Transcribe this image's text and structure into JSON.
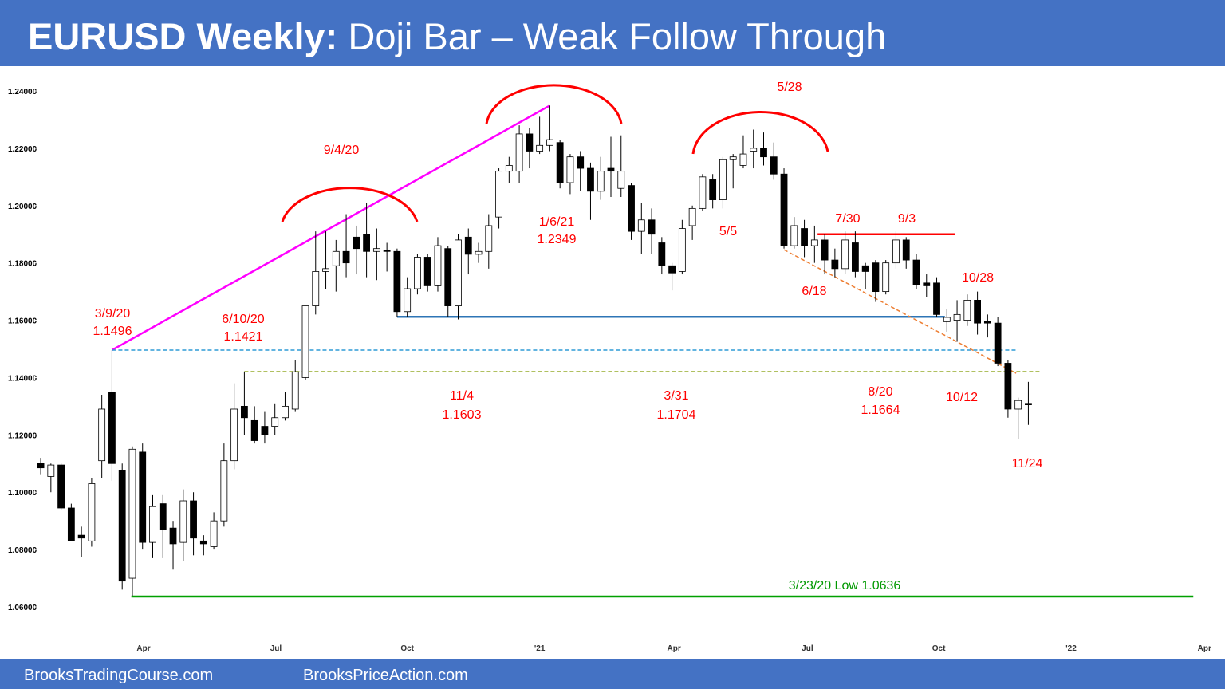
{
  "chart_data": {
    "type": "candlestick",
    "title": [
      "EURUSD Weekly:",
      "Doji Bar – Weak Follow Through"
    ],
    "open": [
      1.11,
      1.1055,
      1.1095,
      1.0945,
      1.085,
      1.083,
      1.111,
      1.135,
      1.1075,
      1.07,
      1.114,
      1.0825,
      1.096,
      1.0875,
      1.0825,
      1.097,
      1.083,
      1.081,
      1.09,
      1.111,
      1.13,
      1.125,
      1.123,
      1.123,
      1.126,
      1.129,
      1.14,
      1.165,
      1.177,
      1.179,
      1.184,
      1.189,
      1.19,
      1.184,
      1.1845,
      1.184,
      1.163,
      1.171,
      1.182,
      1.172,
      1.185,
      1.165,
      1.189,
      1.183,
      1.184,
      1.196,
      1.212,
      1.212,
      1.225,
      1.219,
      1.221,
      1.222,
      1.208,
      1.217,
      1.213,
      1.205,
      1.213,
      1.206,
      1.207,
      1.191,
      1.195,
      1.187,
      1.179,
      1.177,
      1.193,
      1.199,
      1.209,
      1.202,
      1.216,
      1.214,
      1.219,
      1.22,
      1.217,
      1.211,
      1.186,
      1.192,
      1.186,
      1.188,
      1.181,
      1.178,
      1.187,
      1.179,
      1.18,
      1.17,
      1.18,
      1.188,
      1.181,
      1.173,
      1.173,
      1.1595,
      1.16,
      1.16,
      1.167,
      1.1595,
      1.159,
      1.145,
      1.129,
      1.131
    ],
    "high": [
      1.112,
      1.11,
      1.11,
      1.096,
      1.088,
      1.105,
      1.134,
      1.1496,
      1.11,
      1.116,
      1.117,
      1.099,
      1.099,
      1.09,
      1.101,
      1.1,
      1.085,
      1.093,
      1.117,
      1.138,
      1.1421,
      1.13,
      1.128,
      1.131,
      1.135,
      1.146,
      1.165,
      1.191,
      1.191,
      1.188,
      1.197,
      1.193,
      1.201,
      1.192,
      1.187,
      1.185,
      1.175,
      1.183,
      1.183,
      1.189,
      1.186,
      1.19,
      1.192,
      1.187,
      1.197,
      1.213,
      1.217,
      1.228,
      1.227,
      1.231,
      1.2349,
      1.223,
      1.218,
      1.219,
      1.215,
      1.217,
      1.224,
      1.2245,
      1.208,
      1.201,
      1.199,
      1.189,
      1.18,
      1.195,
      1.2,
      1.211,
      1.211,
      1.217,
      1.218,
      1.2245,
      1.2265,
      1.2255,
      1.222,
      1.213,
      1.196,
      1.195,
      1.193,
      1.19,
      1.185,
      1.191,
      1.191,
      1.18,
      1.181,
      1.181,
      1.191,
      1.189,
      1.183,
      1.176,
      1.175,
      1.164,
      1.167,
      1.169,
      1.17,
      1.162,
      1.161,
      1.146,
      1.133,
      1.1385
    ],
    "low": [
      1.106,
      1.1,
      1.094,
      1.083,
      1.0775,
      1.081,
      1.105,
      1.104,
      1.066,
      1.0636,
      1.08,
      1.077,
      1.077,
      1.073,
      1.076,
      1.078,
      1.078,
      1.08,
      1.088,
      1.108,
      1.12,
      1.117,
      1.117,
      1.12,
      1.125,
      1.128,
      1.139,
      1.162,
      1.171,
      1.17,
      1.175,
      1.176,
      1.175,
      1.174,
      1.177,
      1.1612,
      1.1612,
      1.169,
      1.17,
      1.17,
      1.1612,
      1.1603,
      1.176,
      1.18,
      1.178,
      1.192,
      1.208,
      1.208,
      1.213,
      1.218,
      1.219,
      1.206,
      1.204,
      1.205,
      1.195,
      1.202,
      1.203,
      1.203,
      1.188,
      1.183,
      1.183,
      1.176,
      1.1704,
      1.176,
      1.188,
      1.198,
      1.199,
      1.199,
      1.206,
      1.213,
      1.213,
      1.214,
      1.209,
      1.185,
      1.185,
      1.182,
      1.18,
      1.176,
      1.175,
      1.176,
      1.175,
      1.171,
      1.1664,
      1.169,
      1.178,
      1.178,
      1.171,
      1.168,
      1.161,
      1.156,
      1.1525,
      1.158,
      1.155,
      1.154,
      1.144,
      1.126,
      1.1186,
      1.1235
    ],
    "close": [
      1.1085,
      1.1095,
      1.0945,
      1.083,
      1.084,
      1.103,
      1.129,
      1.11,
      1.069,
      1.115,
      1.0825,
      1.095,
      1.087,
      1.082,
      1.097,
      1.084,
      1.082,
      1.09,
      1.111,
      1.129,
      1.126,
      1.118,
      1.12,
      1.126,
      1.13,
      1.142,
      1.165,
      1.177,
      1.178,
      1.184,
      1.18,
      1.185,
      1.184,
      1.185,
      1.184,
      1.163,
      1.171,
      1.182,
      1.172,
      1.186,
      1.165,
      1.188,
      1.183,
      1.184,
      1.193,
      1.212,
      1.214,
      1.225,
      1.219,
      1.221,
      1.223,
      1.208,
      1.217,
      1.213,
      1.205,
      1.212,
      1.212,
      1.212,
      1.191,
      1.195,
      1.19,
      1.179,
      1.1765,
      1.192,
      1.199,
      1.21,
      1.202,
      1.216,
      1.217,
      1.218,
      1.22,
      1.217,
      1.211,
      1.186,
      1.193,
      1.186,
      1.188,
      1.181,
      1.178,
      1.188,
      1.177,
      1.177,
      1.17,
      1.18,
      1.188,
      1.181,
      1.1725,
      1.172,
      1.162,
      1.161,
      1.162,
      1.167,
      1.159,
      1.159,
      1.145,
      1.129,
      1.132,
      1.1305
    ],
    "up_color": "#ffffff",
    "down_color": "#000000",
    "xlim": [
      -4,
      116
    ],
    "ylim": [
      1.06,
      1.24
    ],
    "xticks": [
      {
        "value": 10.1,
        "label": "Apr"
      },
      {
        "value": 23.1,
        "label": "Jul"
      },
      {
        "value": 36.0,
        "label": "Oct"
      },
      {
        "value": 49.0,
        "label": "'21"
      },
      {
        "value": 62.2,
        "label": "Apr"
      },
      {
        "value": 75.3,
        "label": "Jul"
      },
      {
        "value": 88.2,
        "label": "Oct"
      },
      {
        "value": 101.2,
        "label": "'22"
      },
      {
        "value": 114.3,
        "label": "Apr"
      }
    ],
    "yticks": [
      {
        "value": 1.06,
        "label": "1.06000"
      },
      {
        "value": 1.08,
        "label": "1.08000"
      },
      {
        "value": 1.1,
        "label": "1.10000"
      },
      {
        "value": 1.12,
        "label": "1.12000"
      },
      {
        "value": 1.14,
        "label": "1.14000"
      },
      {
        "value": 1.16,
        "label": "1.16000"
      },
      {
        "value": 1.18,
        "label": "1.18000"
      },
      {
        "value": 1.2,
        "label": "1.20000"
      },
      {
        "value": 1.22,
        "label": "1.22000"
      },
      {
        "value": 1.24,
        "label": "1.24000"
      }
    ],
    "lines": [
      {
        "color": "#ff00ff",
        "dash": false,
        "x": [
          7,
          50
        ],
        "y": [
          1.1496,
          1.2349
        ]
      },
      {
        "color": "#2e9bd6",
        "dash": true,
        "x": [
          7,
          95.8
        ],
        "y": [
          1.1496,
          1.1496
        ]
      },
      {
        "color": "#a5b84a",
        "dash": true,
        "x": [
          20,
          98.2
        ],
        "y": [
          1.1421,
          1.1421
        ]
      },
      {
        "color": "#2e75b6",
        "dash": false,
        "x": [
          35,
          88.8
        ],
        "y": [
          1.1612,
          1.1612
        ]
      },
      {
        "color": "#ff0000",
        "dash": false,
        "x": [
          76.3,
          89.8
        ],
        "y": [
          1.19,
          1.19
        ]
      },
      {
        "color": "#ed7d31",
        "dash": true,
        "x": [
          73,
          95.8
        ],
        "y": [
          1.1846,
          1.1415
        ]
      },
      {
        "color": "#00a000",
        "dash": false,
        "x": [
          8.9,
          113.2
        ],
        "y": [
          1.0636,
          1.0636
        ]
      }
    ],
    "annotations": [
      [
        "3/9/20",
        "1.1496"
      ],
      [
        "6/10/20",
        "1.1421"
      ],
      [
        "9/4/20"
      ],
      [
        "11/4",
        "1.1603"
      ],
      [
        "1/6/21",
        "1.2349"
      ],
      [
        "3/31",
        "1.1704"
      ],
      [
        "5/5"
      ],
      [
        "5/28"
      ],
      [
        "6/18"
      ],
      [
        "7/30"
      ],
      [
        "9/3"
      ],
      [
        "8/20",
        "1.1664"
      ],
      [
        "10/28"
      ],
      [
        "10/12"
      ],
      [
        "11/24"
      ],
      [
        "3/23/20 Low 1.0636"
      ]
    ]
  },
  "footer": [
    "BrooksTradingCourse.com",
    "BrooksPriceAction.com"
  ]
}
